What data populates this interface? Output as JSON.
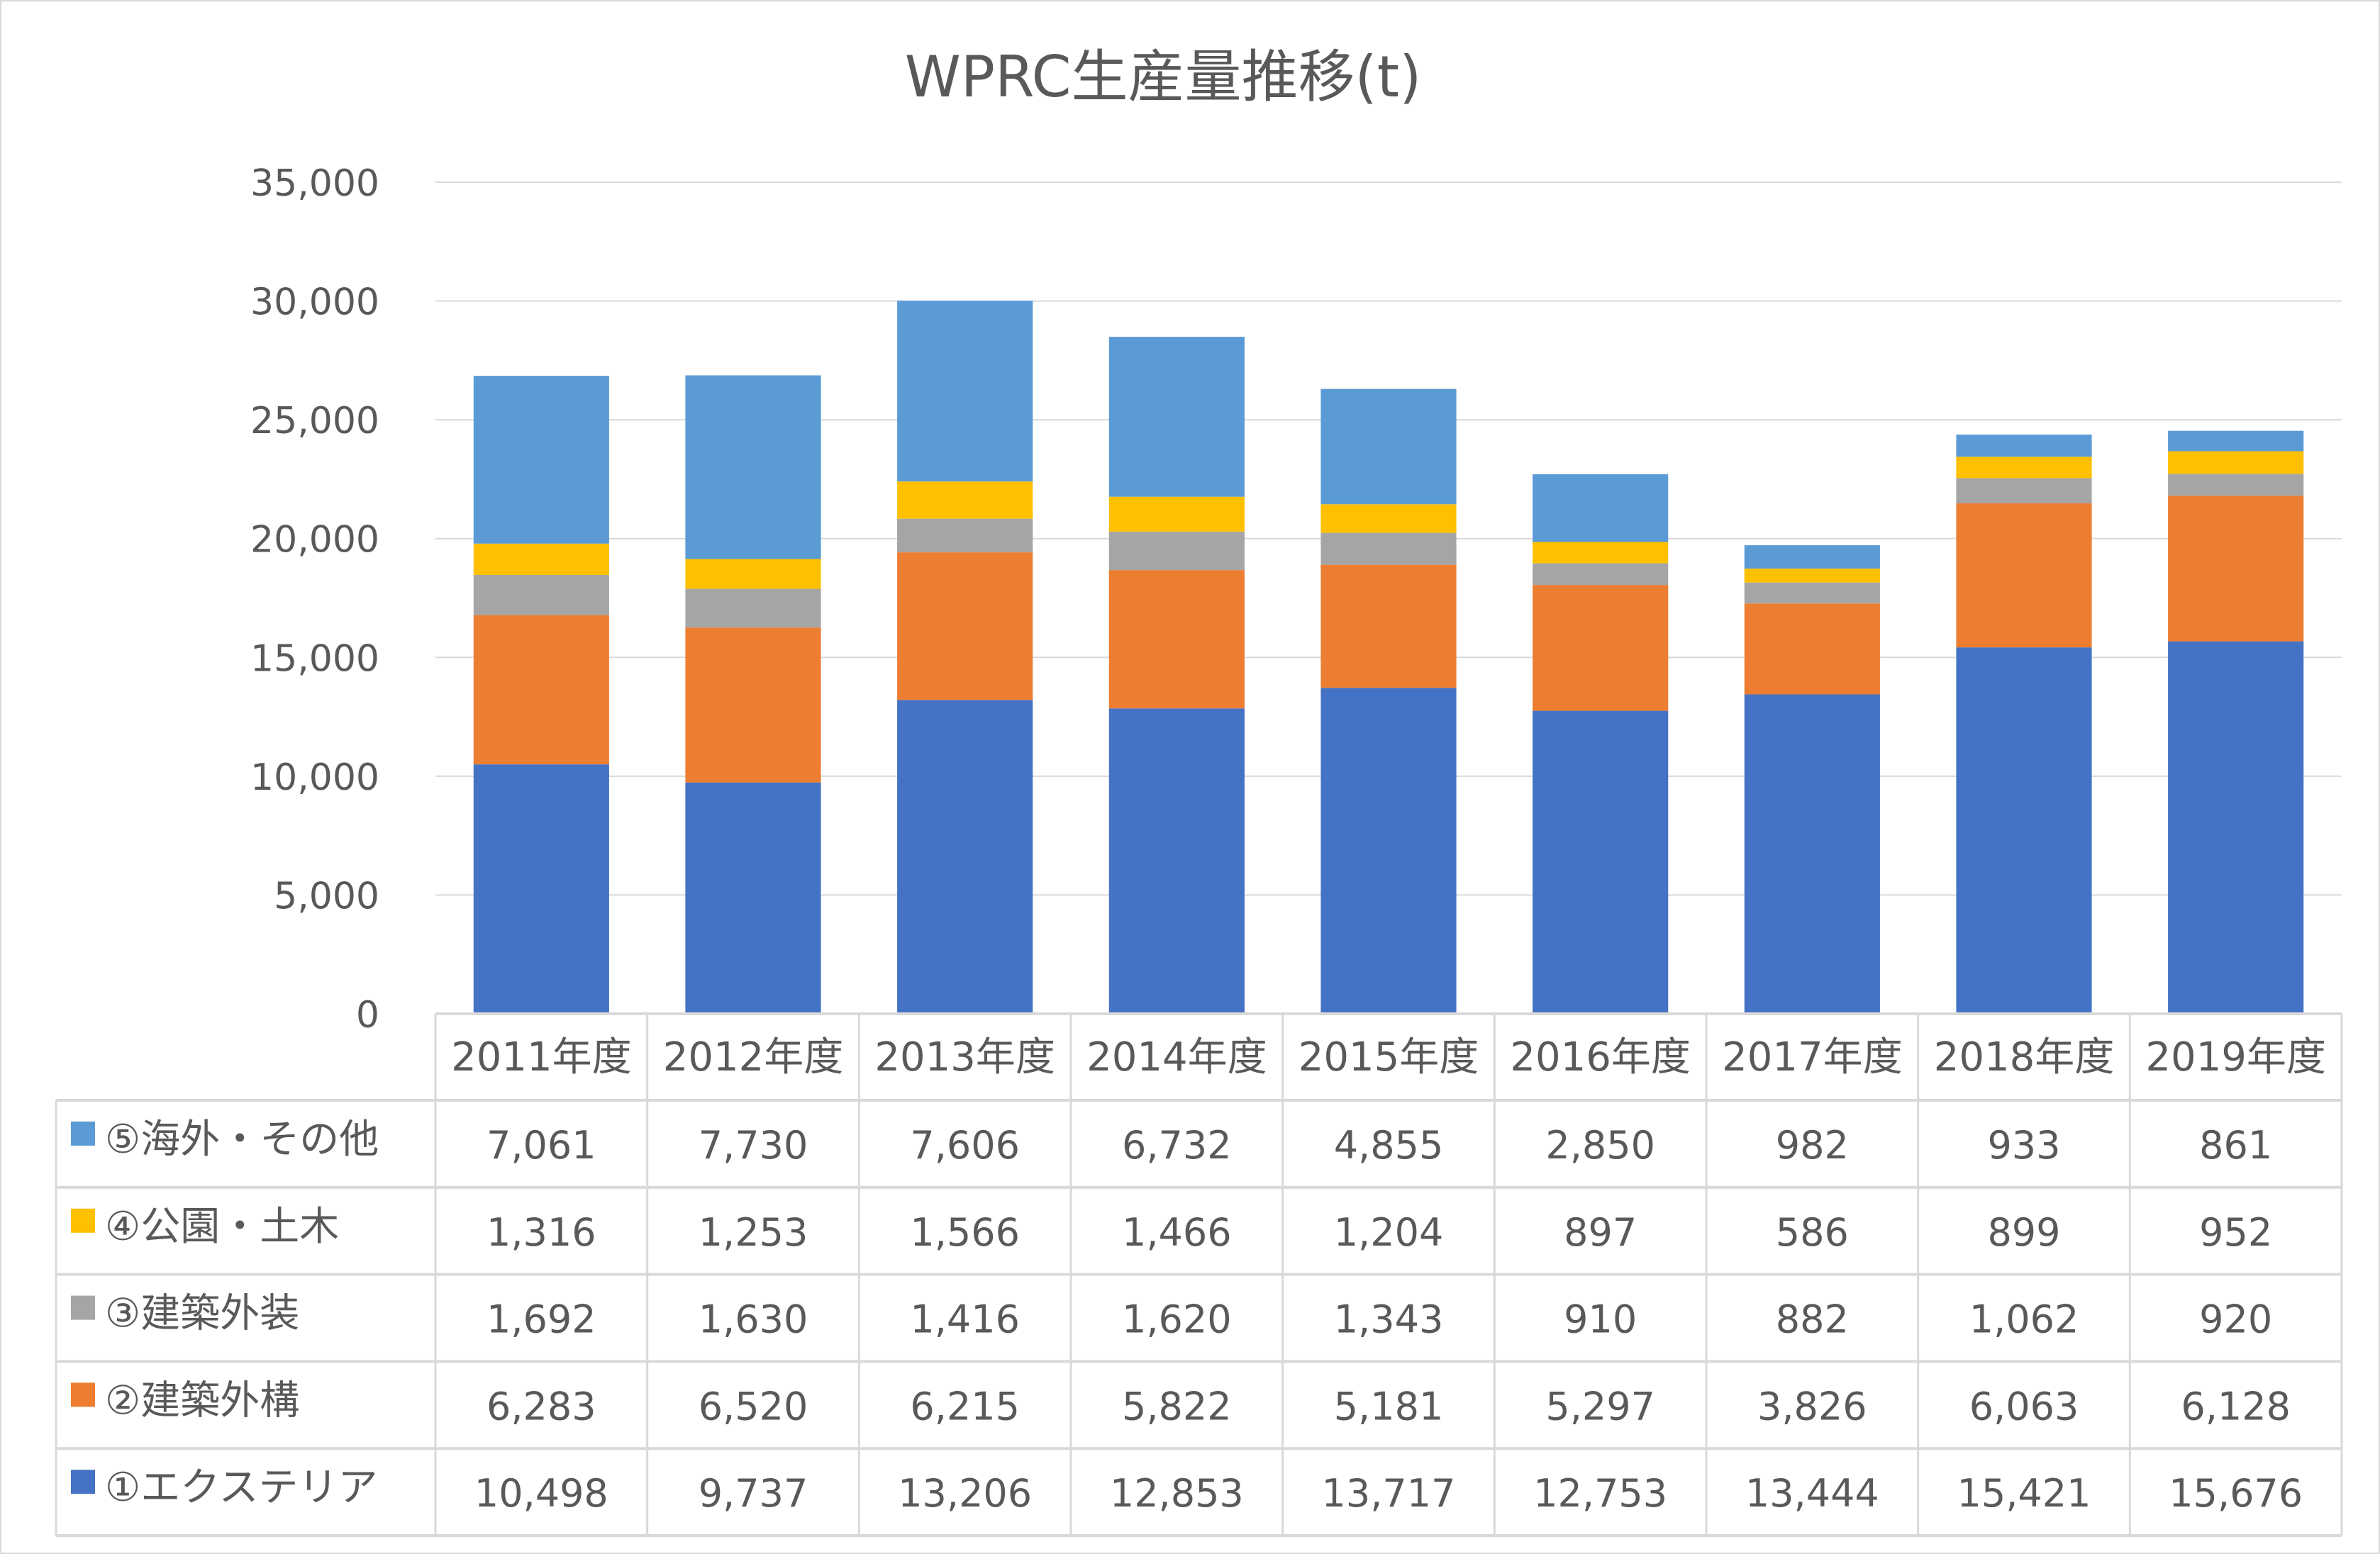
{
  "chart_data": {
    "type": "bar",
    "stacked": true,
    "title": "WPRC生産量推移(t)",
    "xlabel": "",
    "ylabel": "",
    "ylim": [
      0,
      35000
    ],
    "yticks": [
      "0",
      "5,000",
      "10,000",
      "15,000",
      "20,000",
      "25,000",
      "30,000",
      "35,000"
    ],
    "grid": true,
    "legend": "data-table-left",
    "categories": [
      "2011年度",
      "2012年度",
      "2013年度",
      "2014年度",
      "2015年度",
      "2016年度",
      "2017年度",
      "2018年度",
      "2019年度"
    ],
    "series": [
      {
        "name": "①エクステリア",
        "color": "#4472C4",
        "values": [
          10498,
          9737,
          13206,
          12853,
          13717,
          12753,
          13444,
          15421,
          15676
        ],
        "labels": [
          "10,498",
          "9,737",
          "13,206",
          "12,853",
          "13,717",
          "12,753",
          "13,444",
          "15,421",
          "15,676"
        ]
      },
      {
        "name": "②建築外構",
        "color": "#ED7D31",
        "values": [
          6283,
          6520,
          6215,
          5822,
          5181,
          5297,
          3826,
          6063,
          6128
        ],
        "labels": [
          "6,283",
          "6,520",
          "6,215",
          "5,822",
          "5,181",
          "5,297",
          "3,826",
          "6,063",
          "6,128"
        ]
      },
      {
        "name": "③建築外装",
        "color": "#A5A5A5",
        "values": [
          1692,
          1630,
          1416,
          1620,
          1343,
          910,
          882,
          1062,
          920
        ],
        "labels": [
          "1,692",
          "1,630",
          "1,416",
          "1,620",
          "1,343",
          "910",
          "882",
          "1,062",
          "920"
        ]
      },
      {
        "name": "④公園・土木",
        "color": "#FFC000",
        "values": [
          1316,
          1253,
          1566,
          1466,
          1204,
          897,
          586,
          899,
          952
        ],
        "labels": [
          "1,316",
          "1,253",
          "1,566",
          "1,466",
          "1,204",
          "897",
          "586",
          "899",
          "952"
        ]
      },
      {
        "name": "⑤海外・その他",
        "color": "#5B9BD5",
        "values": [
          7061,
          7730,
          7606,
          6732,
          4855,
          2850,
          982,
          933,
          861
        ],
        "labels": [
          "7,061",
          "7,730",
          "7,606",
          "6,732",
          "4,855",
          "2,850",
          "982",
          "933",
          "861"
        ]
      }
    ]
  }
}
